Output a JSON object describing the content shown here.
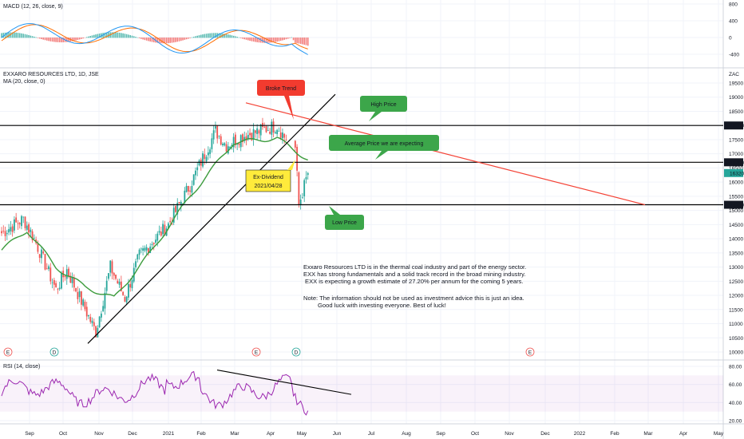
{
  "colors": {
    "up": "#26a69a",
    "down": "#ef5350",
    "ma": "#3c9b3c",
    "macd": "#2196f3",
    "signal": "#ff6d00",
    "rsi": "#9c27b0",
    "trend_black": "#000000",
    "trend_red": "#f44336",
    "callout_green": "#3ca64a",
    "callout_red": "#f23b2f",
    "callout_yellow": "#ffeb3b"
  },
  "chart_data": [
    {
      "type": "candlestick",
      "title": "EXXARO RESOURCES LTD, 1D, JSE",
      "subtitle": "MA (20, close, 0)",
      "currency": "ZAC",
      "x_ticks": [
        "Sep",
        "Oct",
        "Nov",
        "Dec",
        "2021",
        "Feb",
        "Mar",
        "Apr",
        "May",
        "Jun",
        "Jul",
        "Aug",
        "Sep",
        "Oct",
        "Nov",
        "Dec",
        "2022",
        "Feb",
        "Mar",
        "Apr",
        "May"
      ],
      "y_ticks": [
        10000,
        10500,
        11000,
        11500,
        12000,
        12500,
        13000,
        13500,
        14000,
        14500,
        15000,
        15500,
        16000,
        16500,
        17000,
        17500,
        18000,
        18500,
        19000,
        19500
      ],
      "ylim": [
        9900,
        19650
      ],
      "price_keypoints": [
        [
          "Aug",
          14200
        ],
        [
          "Sep",
          14700
        ],
        [
          "Sep",
          14000
        ],
        [
          "Oct",
          12200
        ],
        [
          "Oct",
          12900
        ],
        [
          "Nov",
          10700
        ],
        [
          "Nov",
          13000
        ],
        [
          "Dec",
          11900
        ],
        [
          "Dec",
          13400
        ],
        [
          "2021",
          14500
        ],
        [
          "2021",
          15900
        ],
        [
          "Feb",
          17800
        ],
        [
          "Feb",
          17300
        ],
        [
          "Mar",
          17600
        ],
        [
          "Mar",
          18000
        ],
        [
          "Apr",
          17600
        ],
        [
          "Apr",
          17200
        ],
        [
          "May",
          15200
        ],
        [
          "May",
          16320
        ]
      ],
      "ma20_keypoints": [
        [
          "Aug",
          13600
        ],
        [
          "Sep",
          14300
        ],
        [
          "Oct",
          13000
        ],
        [
          "Nov",
          12300
        ],
        [
          "Dec",
          11900
        ],
        [
          "2021",
          13500
        ],
        [
          "Feb",
          15500
        ],
        [
          "Mar",
          17400
        ],
        [
          "Apr",
          17550
        ],
        [
          "Apr",
          16800
        ]
      ],
      "horizontal_levels": [
        {
          "label": "18000",
          "value": 18000
        },
        {
          "label": "16700",
          "value": 16700
        },
        {
          "label": "15200",
          "value": 15200
        }
      ],
      "last_price": "16320",
      "trendlines": [
        {
          "name": "Support trend",
          "from": [
            "Nov",
            10300
          ],
          "to": [
            "May",
            19100
          ],
          "color": "black"
        },
        {
          "name": "Resistance trend",
          "from": [
            "Mar",
            18800
          ],
          "to": [
            "Mar",
            15200
          ],
          "color": "red"
        }
      ],
      "events": [
        {
          "label": "E",
          "at": "Sep"
        },
        {
          "label": "D",
          "at": "Oct"
        },
        {
          "label": "E",
          "at": "Mar"
        },
        {
          "label": "D",
          "at": "Apr"
        },
        {
          "label": "E",
          "at": "Nov"
        }
      ]
    },
    {
      "type": "line",
      "title": "MACD (12, 26, close, 9)",
      "y_ticks": [
        800,
        400,
        0,
        -400
      ],
      "ylim": [
        -560,
        880
      ]
    },
    {
      "type": "line",
      "title": "RSI (14, close)",
      "y_ticks": [
        80.0,
        60.0,
        40.0,
        20.0
      ],
      "ylim": [
        17,
        84
      ]
    }
  ],
  "annotations": {
    "broke_trend": "Broke Trend",
    "high_price": "High Price",
    "avg_price": "Average Price we are expecting",
    "ex_div_line1": "Ex-Dividend",
    "ex_div_line2": "2021/04/28",
    "low_price": "Low Price"
  },
  "notes": {
    "line1": "Exxaro Resources LTD is in the thermal coal industry and part of the energy sector.",
    "line2": "EXX has strong fundamentals and a solid track record in the broad mining industry.",
    "line3": "EXX is expecting a growth estimate of 27.20% per annum for the coming 5 years.",
    "line4": "Note: The information should not be used as investment advice this is just an idea.",
    "line5": "Good luck with investing everyone. Best of luck!"
  }
}
